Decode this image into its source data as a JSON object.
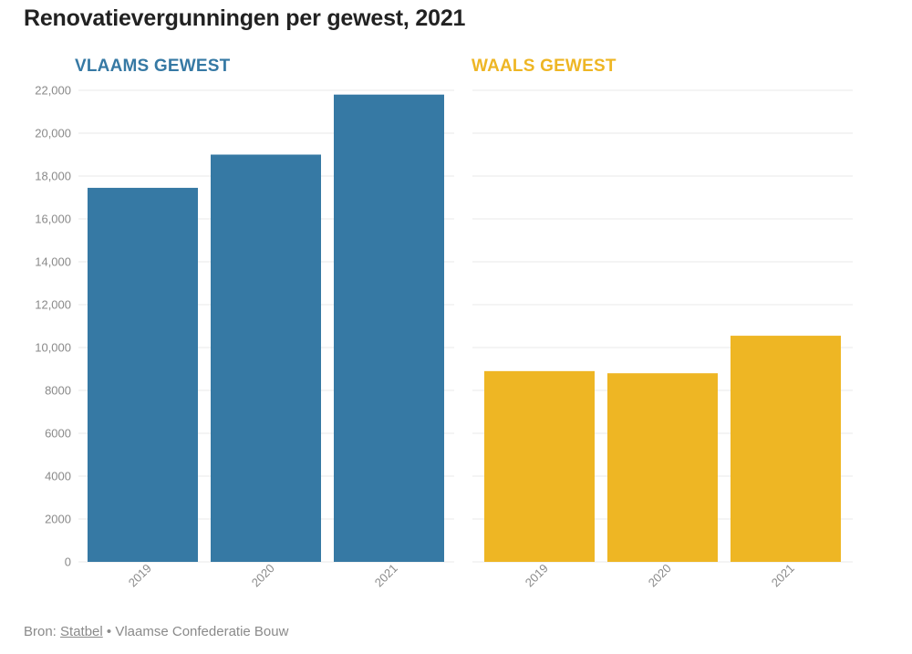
{
  "title": "Renovatievergunningen per gewest, 2021",
  "source": {
    "prefix": "Bron:",
    "link_text": "Statbel",
    "separator": "•",
    "rest": "Vlaamse Confederatie Bouw"
  },
  "colors": {
    "vlaams": "#3679a4",
    "waals": "#eeb624",
    "grid": "#e8e8e8",
    "tick_text": "#8a8a8a"
  },
  "chart_data": [
    {
      "type": "bar",
      "title": "VLAAMS GEWEST",
      "color": "#3679a4",
      "categories": [
        "2019",
        "2020",
        "2021"
      ],
      "values": [
        17450,
        19000,
        21800
      ],
      "ylim": [
        0,
        22000
      ],
      "yticks": [
        0,
        2000,
        4000,
        6000,
        8000,
        10000,
        12000,
        14000,
        16000,
        18000,
        20000,
        22000
      ],
      "ytick_labels": [
        "0",
        "2000",
        "4000",
        "6000",
        "8000",
        "10,000",
        "12,000",
        "14,000",
        "16,000",
        "18,000",
        "20,000",
        "22,000"
      ],
      "grid": true,
      "xlabel": "",
      "ylabel": ""
    },
    {
      "type": "bar",
      "title": "WAALS GEWEST",
      "color": "#eeb624",
      "categories": [
        "2019",
        "2020",
        "2021"
      ],
      "values": [
        8900,
        8800,
        10550
      ],
      "ylim": [
        0,
        22000
      ],
      "grid": true,
      "xlabel": "",
      "ylabel": ""
    }
  ]
}
